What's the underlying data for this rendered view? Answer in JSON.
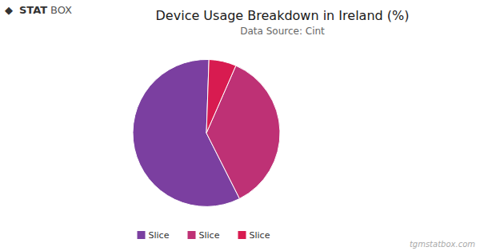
{
  "chart_data": {
    "type": "pie",
    "title": "Device Usage Breakdown in Ireland (%)",
    "subtitle": "Data Source: Cint",
    "categories": [
      "Slice",
      "Slice",
      "Slice"
    ],
    "values": [
      58,
      36,
      6
    ],
    "colors": [
      "#7B3FA0",
      "#BE3175",
      "#D81B50"
    ],
    "legend": "bottom",
    "annotations": [
      "◆",
      "STAT",
      "BOX",
      "tgmstatbox.com"
    ]
  }
}
